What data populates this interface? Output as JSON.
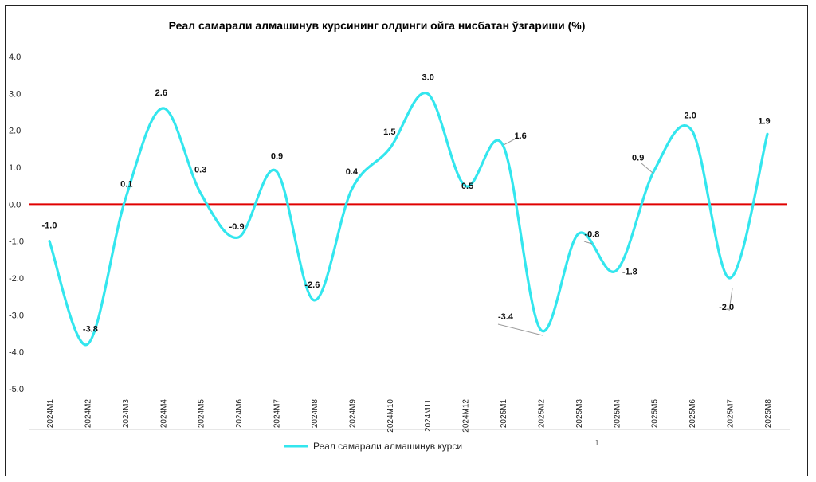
{
  "chart_data": {
    "type": "line",
    "title": "Реал самарали алмашинув курсининг олдинги ойга нисбатан ўзгариши (%)",
    "xlabel": "",
    "ylabel": "",
    "categories": [
      "2024M1",
      "2024M2",
      "2024M3",
      "2024M4",
      "2024M5",
      "2024M6",
      "2024M7",
      "2024M8",
      "2024M9",
      "2024M10",
      "2024M11",
      "2024M12",
      "2025M1",
      "2025M2",
      "2025M3",
      "2025M4",
      "2025M5",
      "2025M6",
      "2025M7",
      "2025M8"
    ],
    "series": [
      {
        "name": "Реал самарали алмашинув курси",
        "values": [
          -1.0,
          -3.8,
          0.1,
          2.6,
          0.3,
          -0.9,
          0.9,
          -2.6,
          0.4,
          1.5,
          3.0,
          0.5,
          1.6,
          -3.4,
          -0.8,
          -1.8,
          0.9,
          2.0,
          -2.0,
          1.9
        ],
        "labels": [
          "-1.0",
          "-3.8",
          "0.1",
          "2.6",
          "0.3",
          "-0.9",
          "0.9",
          "-2.6",
          "0.4",
          "1.5",
          "3.0",
          "0.5",
          "1.6",
          "-3.4",
          "-0.8",
          "-1.8",
          "0.9",
          "2.0",
          "-2.0",
          "1.9"
        ],
        "color": "#33E6EE"
      }
    ],
    "ylim": [
      -5.0,
      4.0
    ],
    "yticks": [
      "4.0",
      "3.0",
      "2.0",
      "1.0",
      "0.0",
      "-1.0",
      "-2.0",
      "-3.0",
      "-4.0",
      "-5.0"
    ],
    "zero_line_color": "#E00000",
    "grid": false,
    "legend_position": "bottom-center",
    "footer_text": "1"
  }
}
